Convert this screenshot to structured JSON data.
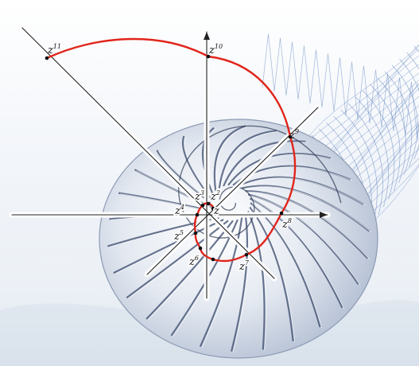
{
  "diagram": {
    "power_labels": [
      {
        "base": "z",
        "exp": "11"
      },
      {
        "base": "z",
        "exp": "10"
      },
      {
        "base": "z",
        "exp": "9"
      },
      {
        "base": "z",
        "exp": "8"
      },
      {
        "base": "z",
        "exp": "7"
      },
      {
        "base": "z",
        "exp": "6"
      },
      {
        "base": "z",
        "exp": "5"
      },
      {
        "base": "z",
        "exp": "4"
      },
      {
        "base": "z",
        "exp": "3"
      },
      {
        "base": "z",
        "exp": "2"
      },
      {
        "base": "z",
        "exp": ""
      }
    ],
    "spiral_color": "#e1251b",
    "axis_color": "#222222",
    "shell_stroke_color": "#3a4a6c",
    "mesh_color": "#4a72b8"
  }
}
